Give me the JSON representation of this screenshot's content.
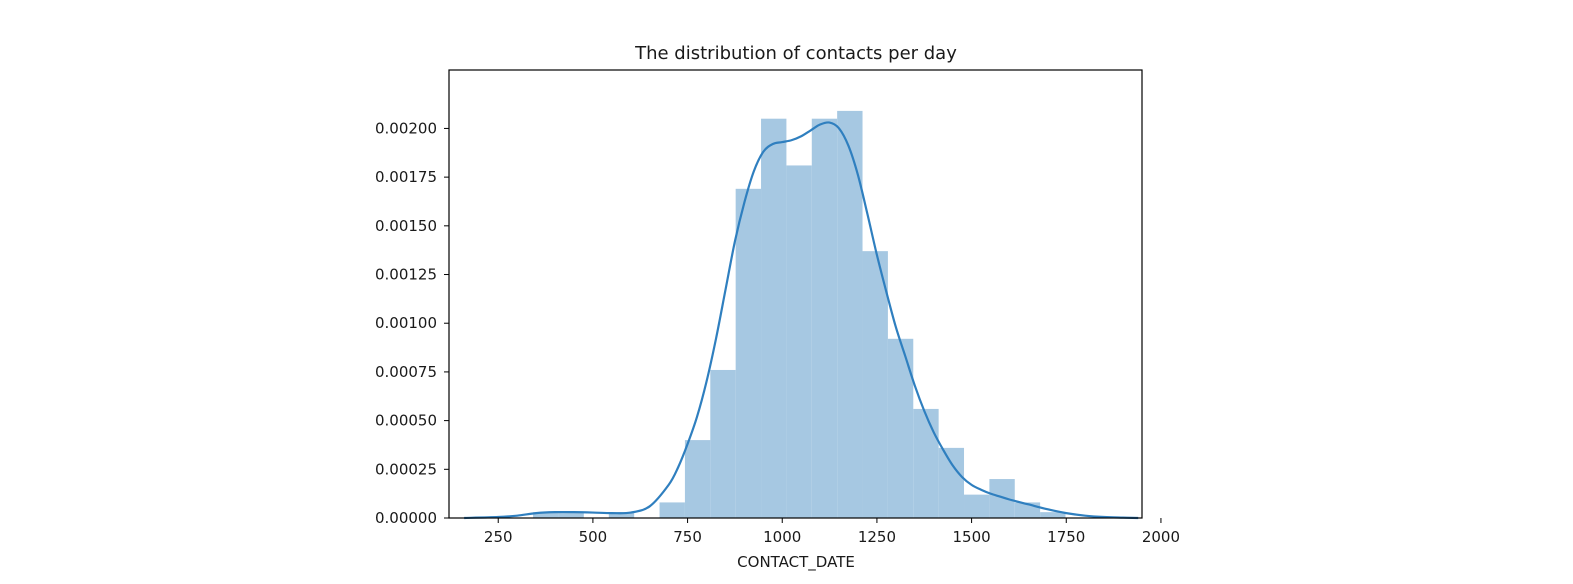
{
  "chart_data": {
    "type": "bar",
    "title": "The distribution of contacts per day",
    "xlabel": "CONTACT_DATE",
    "ylabel": "",
    "xlim": [
      120,
      1950
    ],
    "ylim": [
      0,
      0.0023
    ],
    "x_ticks": [
      250,
      500,
      750,
      1000,
      1250,
      1500,
      1750,
      2000
    ],
    "x_tick_labels": [
      "250",
      "500",
      "750",
      "1000",
      "1250",
      "1500",
      "1750",
      "2000"
    ],
    "y_ticks": [
      0,
      0.00025,
      0.0005,
      0.00075,
      0.001,
      0.00125,
      0.0015,
      0.00175,
      0.002
    ],
    "y_tick_labels": [
      "0.00000",
      "0.00025",
      "0.00050",
      "0.00075",
      "0.00100",
      "0.00125",
      "0.00150",
      "0.00175",
      "0.00200"
    ],
    "grid": false,
    "legend": "none",
    "colors": {
      "bar": "#a6c8e2",
      "kde": "#2f7fbf",
      "axis": "#000000"
    },
    "histogram": {
      "bin_edges": [
        342,
        409,
        476,
        542,
        609,
        676,
        743,
        810,
        877,
        944,
        1011,
        1078,
        1145,
        1212,
        1279,
        1346,
        1413,
        1480,
        1547,
        1614,
        1681,
        1748
      ],
      "values": [
        3e-05,
        3e-05,
        0.0,
        3e-05,
        0.0,
        8e-05,
        0.0004,
        0.00076,
        0.00169,
        0.00205,
        0.00181,
        0.00205,
        0.00209,
        0.00137,
        0.00092,
        0.00056,
        0.00036,
        0.00012,
        0.0002,
        8e-05,
        3e-05
      ]
    },
    "kde": {
      "x": [
        160,
        250,
        300,
        350,
        400,
        450,
        500,
        550,
        600,
        650,
        700,
        725,
        750,
        775,
        800,
        825,
        850,
        875,
        900,
        925,
        950,
        975,
        1000,
        1025,
        1050,
        1075,
        1100,
        1125,
        1150,
        1175,
        1200,
        1225,
        1250,
        1275,
        1300,
        1325,
        1350,
        1375,
        1400,
        1425,
        1450,
        1475,
        1500,
        1525,
        1550,
        1575,
        1600,
        1650,
        1700,
        1750,
        1800,
        1850,
        1900,
        1940
      ],
      "y": [
        0.0,
        5e-06,
        1.2e-05,
        2.5e-05,
        3e-05,
        3e-05,
        2.8e-05,
        2.5e-05,
        2.8e-05,
        6e-05,
        0.00017,
        0.00026,
        0.00038,
        0.00052,
        0.0007,
        0.00092,
        0.00117,
        0.00142,
        0.00162,
        0.00178,
        0.00188,
        0.00192,
        0.00193,
        0.00194,
        0.00196,
        0.00199,
        0.00202,
        0.00203,
        0.002,
        0.00191,
        0.00176,
        0.00156,
        0.00135,
        0.00116,
        0.00098,
        0.00083,
        0.00068,
        0.00055,
        0.00044,
        0.00035,
        0.00027,
        0.00021,
        0.00017,
        0.000145,
        0.000125,
        0.00011,
        9.5e-05,
        7e-05,
        4.5e-05,
        2.5e-05,
        1.2e-05,
        5e-06,
        2e-06,
        0.0
      ]
    }
  }
}
